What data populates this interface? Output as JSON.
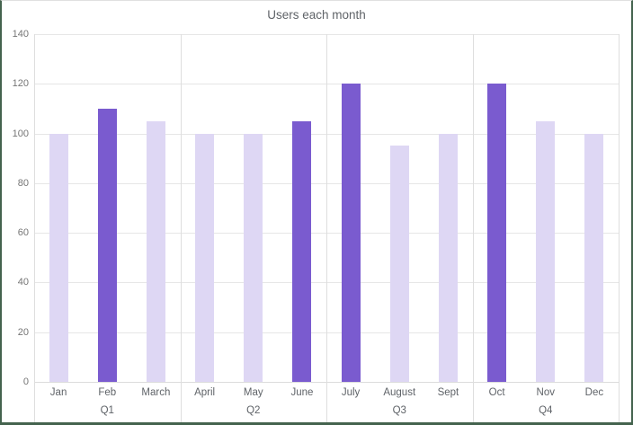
{
  "window": {
    "background": "#FFFFFF",
    "frame_border_color": "#44634E",
    "frame_top_border_color": "#E0E0E0"
  },
  "chart_data": {
    "type": "bar",
    "title": "Users each month",
    "categories": [
      "Jan",
      "Feb",
      "March",
      "April",
      "May",
      "June",
      "July",
      "August",
      "Sept",
      "Oct",
      "Nov",
      "Dec"
    ],
    "values": [
      100,
      110,
      105,
      100,
      100,
      105,
      120,
      95,
      100,
      120,
      105,
      100
    ],
    "highlighted": [
      false,
      true,
      false,
      false,
      false,
      true,
      true,
      false,
      false,
      true,
      false,
      false
    ],
    "groups": [
      {
        "label": "Q1",
        "count": 3
      },
      {
        "label": "Q2",
        "count": 3
      },
      {
        "label": "Q3",
        "count": 3
      },
      {
        "label": "Q4",
        "count": 3
      }
    ],
    "xlabel": "",
    "ylabel": "",
    "y_ticks": [
      0,
      20,
      40,
      60,
      80,
      100,
      120,
      140
    ],
    "ylim": [
      0,
      140
    ],
    "grid": true,
    "legend_position": "none",
    "bar_color": "#DED7F4",
    "highlight_color": "#7A5BCF",
    "gridline_color": "#E6E6E6",
    "divider_color": "#DEDEDE",
    "axis_line_color": "#DCDCDC",
    "tick_text_color": "#757575",
    "label_text_color": "#5F6368",
    "title_text_color": "#5F6368"
  }
}
